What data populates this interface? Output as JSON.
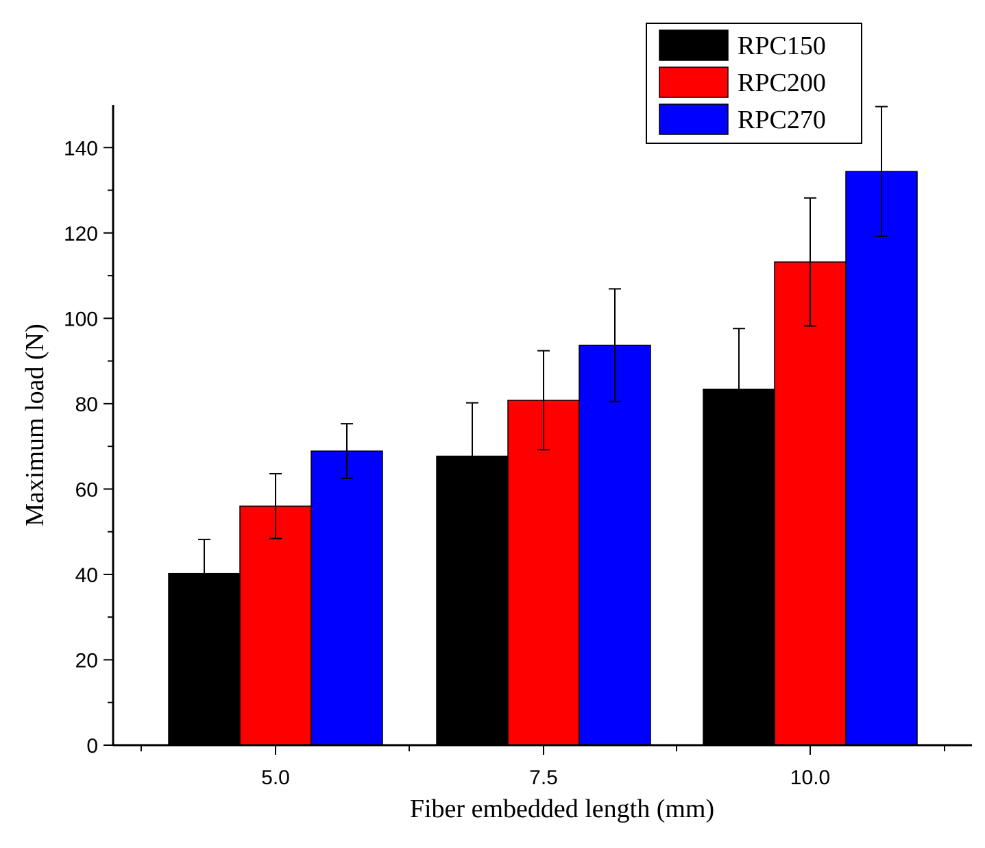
{
  "chart_data": {
    "type": "bar",
    "title": "",
    "xlabel": "Fiber embedded length (mm)",
    "ylabel": "Maximum load (N)",
    "categories": [
      "5.0",
      "7.5",
      "10.0"
    ],
    "ylim": [
      0,
      150
    ],
    "yticks": [
      0,
      20,
      40,
      60,
      80,
      100,
      120,
      140
    ],
    "ytick_labels": [
      "0",
      "20",
      "40",
      "60",
      "80",
      "100",
      "120",
      "140"
    ],
    "series": [
      {
        "name": "RPC150",
        "color": "#000000",
        "values": [
          40.2,
          67.7,
          83.4
        ],
        "errors": [
          8.0,
          12.5,
          14.2
        ]
      },
      {
        "name": "RPC200",
        "color": "#ff0000",
        "values": [
          56.0,
          80.8,
          113.2
        ],
        "errors": [
          7.6,
          11.6,
          15.0
        ]
      },
      {
        "name": "RPC270",
        "color": "#0000ff",
        "values": [
          68.9,
          93.7,
          134.4
        ],
        "errors": [
          6.4,
          13.2,
          15.2
        ]
      }
    ],
    "legend_position": "top-right",
    "grid": false
  }
}
